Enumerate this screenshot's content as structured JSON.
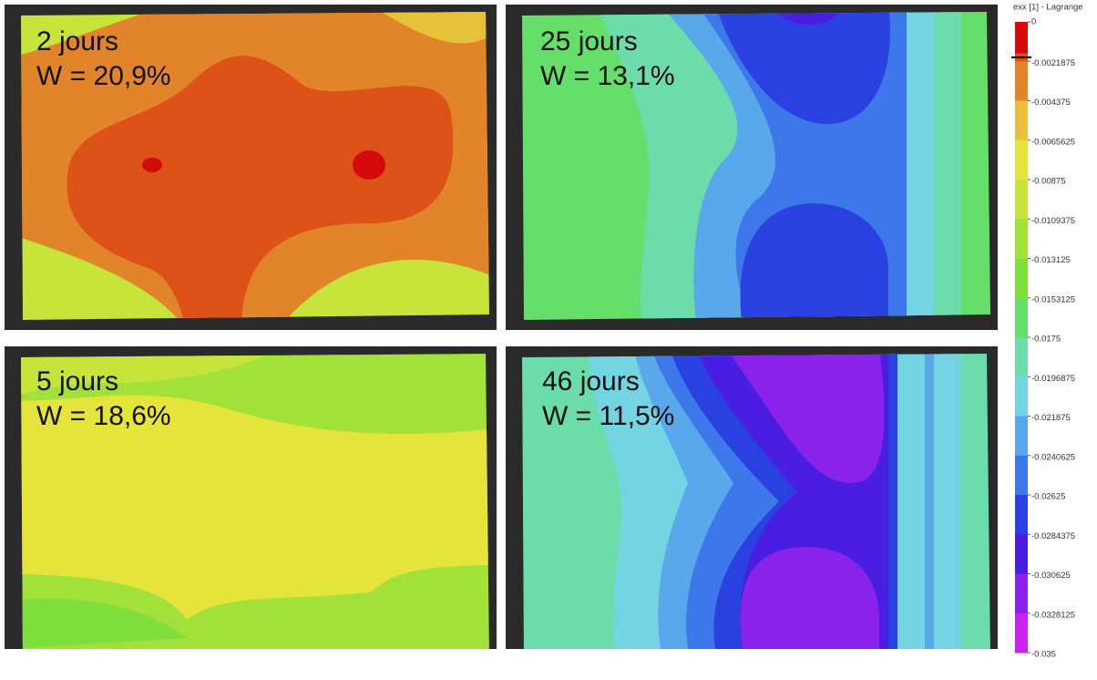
{
  "panels": [
    {
      "day": "2 jours",
      "moisture": "W = 20,9%"
    },
    {
      "day": "25 jours",
      "moisture": "W = 13,1%"
    },
    {
      "day": "5 jours",
      "moisture": "W = 18,6%"
    },
    {
      "day": "46 jours",
      "moisture": "W = 11,5%"
    }
  ],
  "colorbar": {
    "title": "exx [1] - Lagrange",
    "ticks": [
      "0",
      "-0.0021875",
      "-0.004375",
      "-0.0065625",
      "-0.00875",
      "-0.0109375",
      "-0.013125",
      "-0.0153125",
      "-0.0175",
      "-0.0196875",
      "-0.021875",
      "-0.0240625",
      "-0.02625",
      "-0.0284375",
      "-0.030625",
      "-0.0328125",
      "-0.035"
    ],
    "colors": [
      "#d40a0a",
      "#dc5218",
      "#e2852a",
      "#e6c23a",
      "#e4e43a",
      "#c6e43a",
      "#a2e03a",
      "#7ede3c",
      "#66de6a",
      "#6cdcaa",
      "#74d4e2",
      "#5aa8ec",
      "#3c78ea",
      "#2a40e0",
      "#4a1ee2",
      "#8a22ea",
      "#cc22ee"
    ]
  }
}
